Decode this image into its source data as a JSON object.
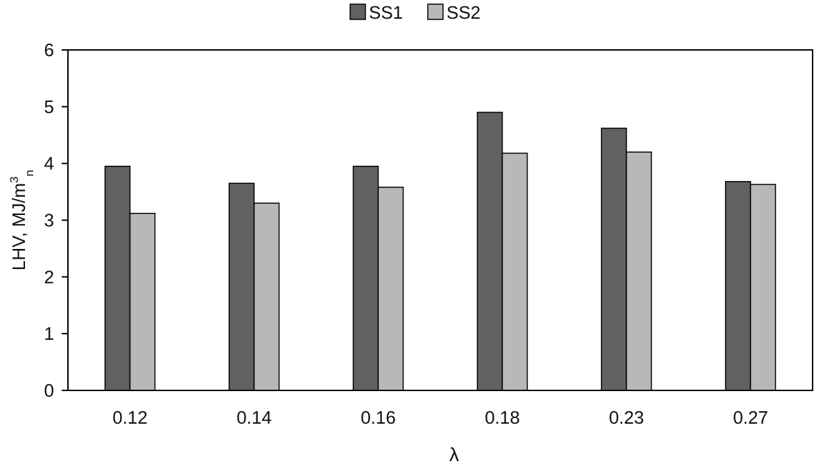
{
  "chart_data": {
    "type": "bar",
    "title": "",
    "xlabel": "λ",
    "ylabel": {
      "main": "LHV, MJ/m",
      "superscript": "3",
      "subscript": "n"
    },
    "categories": [
      "0.12",
      "0.14",
      "0.16",
      "0.18",
      "0.23",
      "0.27"
    ],
    "series": [
      {
        "name": "SS1",
        "values": [
          3.95,
          3.65,
          3.95,
          4.9,
          4.62,
          3.68
        ],
        "color": "#616161"
      },
      {
        "name": "SS2",
        "values": [
          3.12,
          3.3,
          3.58,
          4.18,
          4.2,
          3.63
        ],
        "color": "#b8b8b8"
      }
    ],
    "ylim": [
      0,
      6
    ],
    "yticks": [
      "0",
      "1",
      "2",
      "3",
      "4",
      "5",
      "6"
    ],
    "grid": false,
    "legend": "top-center"
  }
}
